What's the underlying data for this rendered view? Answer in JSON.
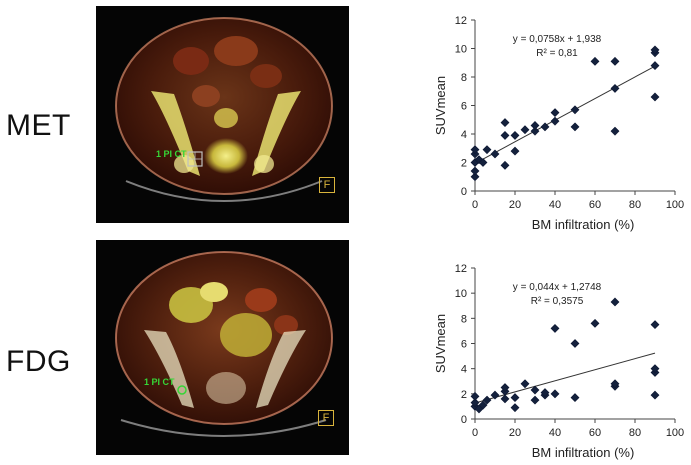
{
  "rows": [
    {
      "label": "MET",
      "image": {
        "roi_label": "1 PI CT",
        "orientation_marker": "F"
      },
      "chart_data": {
        "type": "scatter",
        "xlabel": "BM infiltration (%)",
        "ylabel": "SUVmean",
        "xlim": [
          0,
          100
        ],
        "ylim": [
          0,
          12
        ],
        "xticks": [
          0,
          20,
          40,
          60,
          80,
          100
        ],
        "yticks": [
          0,
          2,
          4,
          6,
          8,
          10,
          12
        ],
        "grid": false,
        "equation": "y = 0,0758x + 1,938",
        "r_squared": "R² = 0,81",
        "trendline": {
          "slope": 0.0758,
          "intercept": 1.938,
          "x_range": [
            0,
            90
          ]
        },
        "points": [
          [
            0,
            1.0
          ],
          [
            0,
            1.4
          ],
          [
            0,
            2.0
          ],
          [
            0,
            2.6
          ],
          [
            0,
            2.9
          ],
          [
            2,
            2.2
          ],
          [
            4,
            2.0
          ],
          [
            6,
            2.9
          ],
          [
            10,
            2.6
          ],
          [
            15,
            1.8
          ],
          [
            15,
            3.9
          ],
          [
            15,
            4.8
          ],
          [
            20,
            2.8
          ],
          [
            20,
            3.9
          ],
          [
            25,
            4.3
          ],
          [
            30,
            4.2
          ],
          [
            30,
            4.6
          ],
          [
            35,
            4.5
          ],
          [
            40,
            4.9
          ],
          [
            40,
            5.5
          ],
          [
            50,
            4.5
          ],
          [
            50,
            5.7
          ],
          [
            60,
            9.1
          ],
          [
            70,
            4.2
          ],
          [
            70,
            7.2
          ],
          [
            70,
            9.1
          ],
          [
            90,
            6.6
          ],
          [
            90,
            8.8
          ],
          [
            90,
            9.7
          ],
          [
            90,
            9.9
          ]
        ]
      }
    },
    {
      "label": "FDG",
      "image": {
        "roi_label": "1 PI CT",
        "orientation_marker": "F"
      },
      "chart_data": {
        "type": "scatter",
        "xlabel": "BM infiltration (%)",
        "ylabel": "SUVmean",
        "xlim": [
          0,
          100
        ],
        "ylim": [
          0,
          12
        ],
        "xticks": [
          0,
          20,
          40,
          60,
          80,
          100
        ],
        "yticks": [
          0,
          2,
          4,
          6,
          8,
          10,
          12
        ],
        "grid": false,
        "equation": "y = 0,044x + 1,2748",
        "r_squared": "R² = 0,3575",
        "trendline": {
          "slope": 0.044,
          "intercept": 1.2748,
          "x_range": [
            0,
            90
          ]
        },
        "points": [
          [
            0,
            1.0
          ],
          [
            0,
            1.3
          ],
          [
            0,
            1.8
          ],
          [
            2,
            0.8
          ],
          [
            4,
            1.1
          ],
          [
            6,
            1.5
          ],
          [
            10,
            1.9
          ],
          [
            15,
            1.6
          ],
          [
            15,
            2.2
          ],
          [
            15,
            2.5
          ],
          [
            20,
            0.9
          ],
          [
            20,
            1.7
          ],
          [
            25,
            2.8
          ],
          [
            30,
            1.5
          ],
          [
            30,
            2.3
          ],
          [
            35,
            1.9
          ],
          [
            35,
            2.1
          ],
          [
            40,
            2.0
          ],
          [
            40,
            7.2
          ],
          [
            50,
            1.7
          ],
          [
            50,
            6.0
          ],
          [
            60,
            7.6
          ],
          [
            70,
            2.6
          ],
          [
            70,
            2.8
          ],
          [
            70,
            9.3
          ],
          [
            90,
            1.9
          ],
          [
            90,
            3.7
          ],
          [
            90,
            4.0
          ],
          [
            90,
            7.5
          ]
        ]
      }
    }
  ]
}
